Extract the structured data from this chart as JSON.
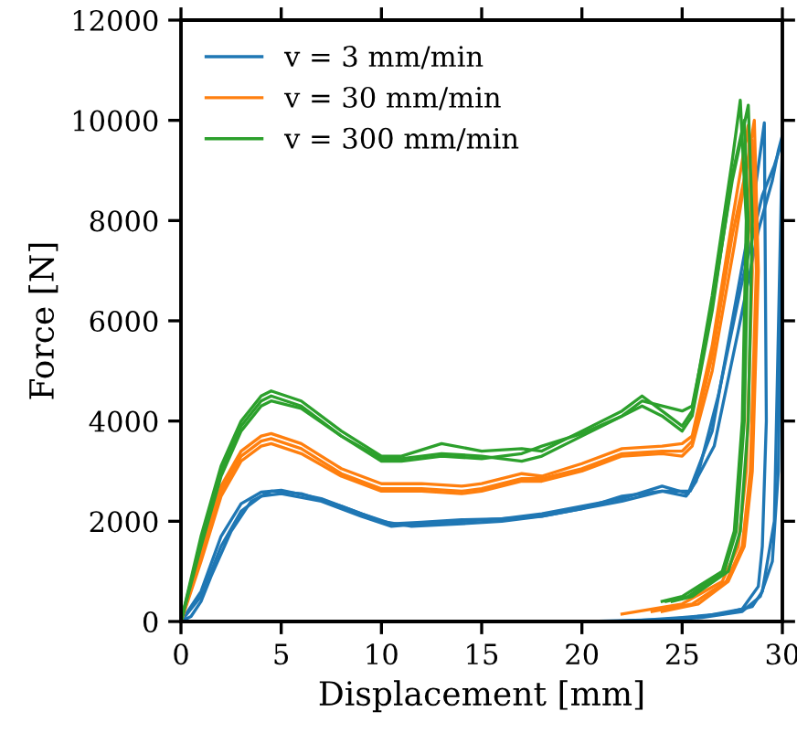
{
  "chart_data": {
    "type": "line",
    "xlabel": "Displacement [mm]",
    "ylabel": "Force [N]",
    "xlim": [
      0,
      30
    ],
    "ylim": [
      0,
      12000
    ],
    "xticks": [
      0,
      5,
      10,
      15,
      20,
      25,
      30
    ],
    "yticks": [
      0,
      2000,
      4000,
      6000,
      8000,
      10000,
      12000
    ],
    "grid": false,
    "legend": "top left",
    "marker": "none",
    "line_style": "solid",
    "series": [
      {
        "name": "v = 3 mm/min",
        "color": "#1f77b4",
        "x": [
          0,
          1,
          2,
          3,
          4,
          5,
          7,
          9,
          10.5,
          12,
          14,
          16,
          18,
          20,
          22,
          24,
          25.3,
          26.5,
          27.5,
          28.5,
          29.1,
          29.2,
          29.0,
          28.8,
          28,
          26,
          24,
          20
        ],
        "values": [
          0,
          600,
          1700,
          2350,
          2580,
          2620,
          2450,
          2150,
          1950,
          1980,
          2030,
          2050,
          2150,
          2300,
          2450,
          2700,
          2550,
          3800,
          6000,
          8200,
          9950,
          4000,
          1500,
          700,
          250,
          100,
          40,
          0
        ]
      },
      {
        "color": "#1f77b4",
        "x": [
          0,
          0.5,
          1,
          1.5,
          2.5,
          3.5,
          4.5,
          6,
          8,
          10,
          11.5,
          14,
          16,
          18,
          20,
          22,
          24,
          25.2,
          25.7,
          26.8,
          28,
          29,
          29.6,
          30,
          29.6,
          29.0,
          28.5,
          27,
          25,
          22
        ],
        "values": [
          0,
          100,
          400,
          900,
          1800,
          2400,
          2600,
          2550,
          2300,
          2000,
          1900,
          1950,
          2000,
          2100,
          2250,
          2500,
          2600,
          2500,
          2800,
          4500,
          6800,
          8500,
          9100,
          9600,
          2000,
          600,
          300,
          150,
          80,
          0
        ]
      },
      {
        "color": "#1f77b4",
        "x": [
          0,
          1,
          2,
          3,
          4,
          5,
          7,
          9,
          10.5,
          12,
          14,
          16,
          18,
          20,
          22,
          24,
          25.4,
          26.6,
          27.8,
          28.8,
          29.5,
          29.8,
          30,
          29.8,
          29.5,
          28.9,
          28,
          26,
          24,
          21
        ],
        "values": [
          0,
          500,
          1500,
          2200,
          2500,
          2550,
          2400,
          2100,
          1900,
          1950,
          2000,
          2050,
          2100,
          2250,
          2400,
          2600,
          2600,
          3500,
          5800,
          7800,
          8800,
          9400,
          9700,
          3000,
          1200,
          500,
          200,
          80,
          30,
          0
        ]
      },
      {
        "name": "v = 30 mm/min",
        "color": "#ff7f0e",
        "x": [
          0,
          1,
          2,
          3,
          4,
          4.5,
          6,
          8,
          10,
          12,
          14,
          15,
          17,
          18,
          20,
          22,
          24,
          25,
          25.5,
          26.5,
          27.5,
          28.3,
          28.5,
          28.2,
          27.8,
          27,
          25,
          22
        ],
        "values": [
          0,
          1400,
          2700,
          3400,
          3700,
          3750,
          3550,
          3050,
          2750,
          2750,
          2700,
          2750,
          2950,
          2900,
          3150,
          3450,
          3500,
          3550,
          3700,
          5500,
          8000,
          9900,
          7000,
          3000,
          1500,
          800,
          350,
          150
        ]
      },
      {
        "color": "#ff7f0e",
        "x": [
          0,
          1,
          2,
          3,
          4,
          4.5,
          6,
          8,
          10,
          12,
          14,
          15,
          17,
          18,
          20,
          22,
          24,
          25,
          25.5,
          26.5,
          27.5,
          28.5,
          28.7,
          28.4,
          28,
          27.2,
          25.5,
          23.5
        ],
        "values": [
          0,
          1300,
          2600,
          3300,
          3600,
          3650,
          3450,
          2950,
          2650,
          2650,
          2600,
          2650,
          2850,
          2850,
          3050,
          3350,
          3400,
          3400,
          3600,
          5300,
          7700,
          9600,
          7000,
          3000,
          1500,
          800,
          350,
          200
        ]
      },
      {
        "color": "#ff7f0e",
        "x": [
          0,
          1,
          2,
          3,
          4,
          4.5,
          6,
          8,
          10,
          12,
          14,
          15,
          17,
          18,
          20,
          22,
          24,
          25,
          25.5,
          26.5,
          27.6,
          28.6,
          28.8,
          28.5,
          28.1,
          27.3,
          25.8,
          24
        ],
        "values": [
          0,
          1200,
          2500,
          3200,
          3500,
          3550,
          3350,
          2900,
          2600,
          2600,
          2550,
          2600,
          2800,
          2800,
          3000,
          3300,
          3350,
          3300,
          3500,
          5000,
          7500,
          10000,
          7000,
          3000,
          1500,
          800,
          350,
          200
        ]
      },
      {
        "name": "v = 300 mm/min",
        "color": "#2ca02c",
        "x": [
          0,
          1,
          2,
          3,
          4,
          4.5,
          6,
          8,
          10,
          11,
          13,
          15,
          17,
          18,
          20,
          22,
          23,
          24,
          25,
          25.5,
          26.5,
          27.5,
          27.9,
          28.2,
          28.0,
          27.6,
          27,
          25,
          24
        ],
        "values": [
          0,
          1700,
          3100,
          4000,
          4500,
          4600,
          4400,
          3800,
          3300,
          3300,
          3550,
          3400,
          3450,
          3400,
          3800,
          4200,
          4500,
          4200,
          3900,
          4200,
          6500,
          9200,
          10400,
          8000,
          4000,
          1800,
          1000,
          500,
          400
        ]
      },
      {
        "color": "#2ca02c",
        "x": [
          0,
          1,
          2,
          3,
          4,
          4.5,
          6,
          8,
          10,
          11,
          13,
          15,
          17,
          18,
          20,
          22,
          23,
          24,
          25,
          25.5,
          26.5,
          27.5,
          28.3,
          28.5,
          28.3,
          27.9,
          27.3,
          25.5,
          24.5
        ],
        "values": [
          0,
          1600,
          3000,
          3900,
          4400,
          4500,
          4300,
          3700,
          3250,
          3250,
          3350,
          3300,
          3200,
          3300,
          3700,
          4100,
          4400,
          4300,
          4200,
          4300,
          6300,
          8800,
          10300,
          8000,
          4000,
          1800,
          1000,
          500,
          400
        ]
      },
      {
        "color": "#2ca02c",
        "x": [
          0,
          1,
          2,
          3,
          4,
          4.5,
          6,
          8,
          10,
          11,
          13,
          15,
          17,
          18,
          20,
          22,
          23,
          24,
          25,
          25.5,
          26.5,
          27.5,
          28.1,
          28.3,
          28.1,
          27.7,
          27.1,
          25.3,
          24.2
        ],
        "values": [
          0,
          1500,
          2900,
          3800,
          4300,
          4400,
          4250,
          3700,
          3200,
          3200,
          3300,
          3250,
          3350,
          3500,
          3750,
          4100,
          4300,
          4100,
          3800,
          4100,
          6200,
          8900,
          10000,
          8000,
          4000,
          1800,
          1000,
          500,
          400
        ]
      }
    ]
  }
}
